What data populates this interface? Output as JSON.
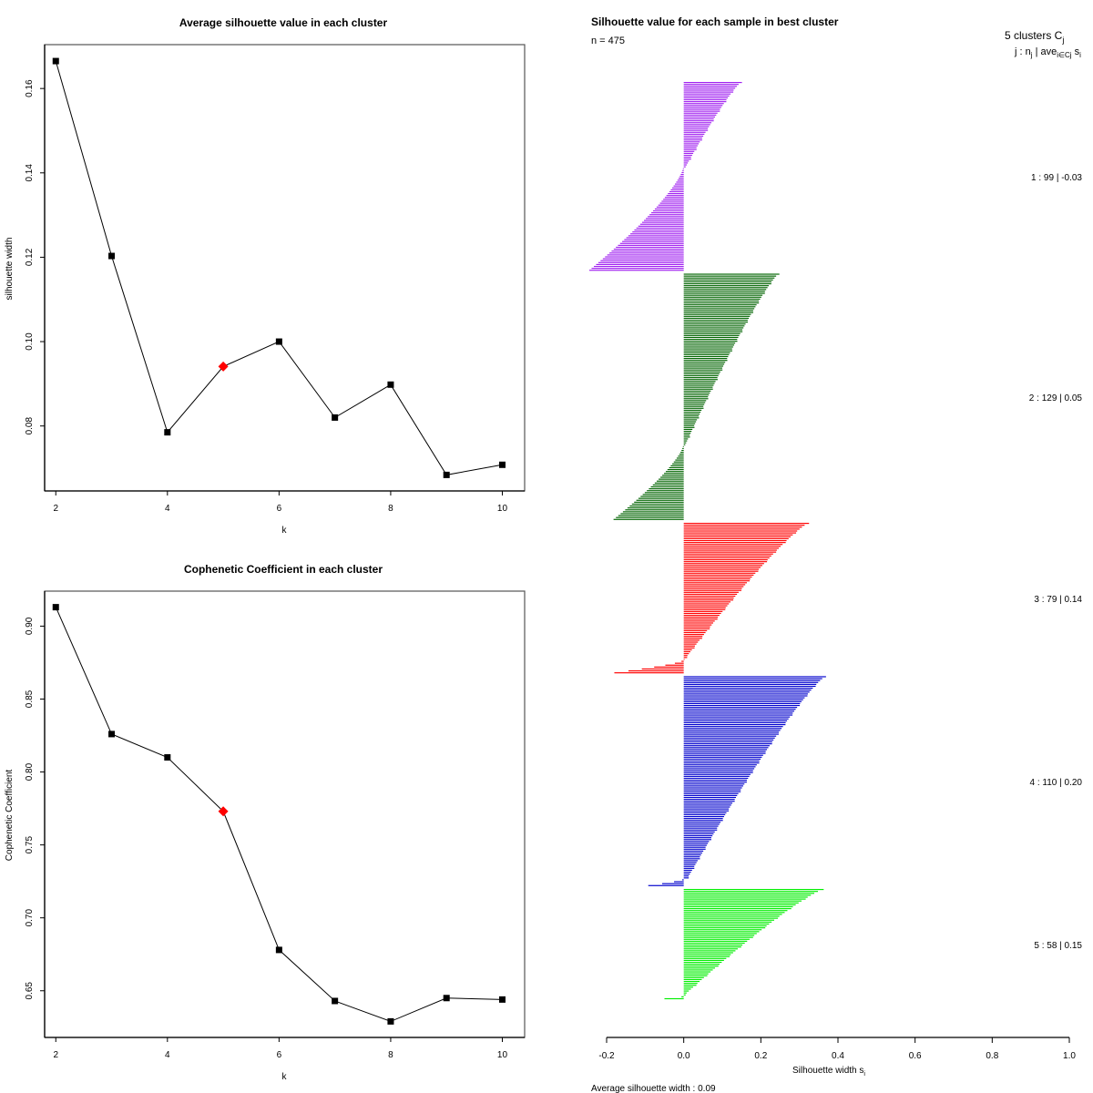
{
  "chart_data": [
    {
      "type": "line",
      "title": "Average silhouette value in each cluster",
      "xlabel": "k",
      "ylabel": "silhouette width",
      "x": [
        2,
        3,
        4,
        5,
        6,
        7,
        8,
        9,
        10
      ],
      "values": [
        0.1665,
        0.1203,
        0.0785,
        0.0941,
        0.1,
        0.082,
        0.0898,
        0.0684,
        0.0708
      ],
      "highlight_x": 5,
      "highlight_color": "#FF0000",
      "xticks": [
        "2",
        "4",
        "6",
        "8",
        "10"
      ],
      "xtick_values": [
        2,
        4,
        6,
        8,
        10
      ],
      "yticks": [
        "0.08",
        "0.10",
        "0.12",
        "0.14",
        "0.16"
      ],
      "ytick_values": [
        0.08,
        0.1,
        0.12,
        0.14,
        0.16
      ],
      "xlim": [
        1.8,
        10.4
      ],
      "ylim": [
        0.0646,
        0.1704
      ],
      "grid": false
    },
    {
      "type": "line",
      "title": "Cophenetic Coefficient in each cluster",
      "xlabel": "k",
      "ylabel": "Cophenetic Coefficient",
      "x": [
        2,
        3,
        4,
        5,
        6,
        7,
        8,
        9,
        10
      ],
      "values": [
        0.913,
        0.826,
        0.81,
        0.773,
        0.678,
        0.643,
        0.629,
        0.645,
        0.644
      ],
      "highlight_x": 5,
      "highlight_color": "#FF0000",
      "xticks": [
        "2",
        "4",
        "6",
        "8",
        "10"
      ],
      "xtick_values": [
        2,
        4,
        6,
        8,
        10
      ],
      "yticks": [
        "0.65",
        "0.70",
        "0.75",
        "0.80",
        "0.85",
        "0.90"
      ],
      "ytick_values": [
        0.65,
        0.7,
        0.75,
        0.8,
        0.85,
        0.9
      ],
      "xlim": [
        1.8,
        10.4
      ],
      "ylim": [
        0.618,
        0.924
      ],
      "grid": false
    },
    {
      "type": "bar",
      "orientation": "horizontal",
      "title": "Silhouette value for each sample in best cluster",
      "subtitle": "n = 475",
      "legend_header_1": "5  clusters  C",
      "legend_header_1_sub": "j",
      "legend_header_2": "j :  n",
      "legend_header_2_sub": "j",
      "legend_header_2_rest": " | ave",
      "legend_header_2_sub2": "i∈Cj",
      "legend_header_2_end": " s",
      "legend_header_2_sub3": "i",
      "xlabel": "Silhouette width s",
      "xlabel_sub": "i",
      "footer": "Average silhouette width :  0.09",
      "xticks": [
        "-0.2",
        "0.0",
        "0.2",
        "0.4",
        "0.6",
        "0.8",
        "1.0"
      ],
      "xtick_values": [
        -0.2,
        0.0,
        0.2,
        0.4,
        0.6,
        0.8,
        1.0
      ],
      "xlim": [
        -0.2,
        1.0
      ],
      "clusters": [
        {
          "id": 1,
          "n": 99,
          "avg": "-0.03",
          "label": "1 :  99  |  -0.03",
          "color": "#A020F0",
          "pos_count": 45,
          "pos_max": 0.148,
          "pos_min": 0.005,
          "neg_count": 54,
          "neg_min": -0.245,
          "neg_max": -0.002
        },
        {
          "id": 2,
          "n": 129,
          "avg": "0.05",
          "label": "2 :  129  |  0.05",
          "color": "#006400",
          "pos_count": 90,
          "pos_max": 0.245,
          "pos_min": 0.004,
          "neg_count": 39,
          "neg_min": -0.182,
          "neg_max": -0.002
        },
        {
          "id": 3,
          "n": 79,
          "avg": "0.14",
          "label": "3 :  79  |  0.14",
          "color": "#FF0000",
          "pos_count": 72,
          "pos_max": 0.322,
          "pos_min": 0.002,
          "neg_count": 7,
          "neg_min": -0.18,
          "neg_max": -0.006
        },
        {
          "id": 4,
          "n": 110,
          "avg": "0.20",
          "label": "4 :  110  |  0.20",
          "color": "#0000CD",
          "pos_count": 106,
          "pos_max": 0.366,
          "pos_min": 0.01,
          "neg_count": 4,
          "neg_min": -0.092,
          "neg_max": -0.004
        },
        {
          "id": 5,
          "n": 58,
          "avg": "0.15",
          "label": "5 :  58  |  0.15",
          "color": "#00EE00",
          "pos_count": 56,
          "pos_max": 0.36,
          "pos_min": 0.002,
          "neg_count": 2,
          "neg_min": -0.05,
          "neg_max": -0.006
        }
      ]
    }
  ]
}
